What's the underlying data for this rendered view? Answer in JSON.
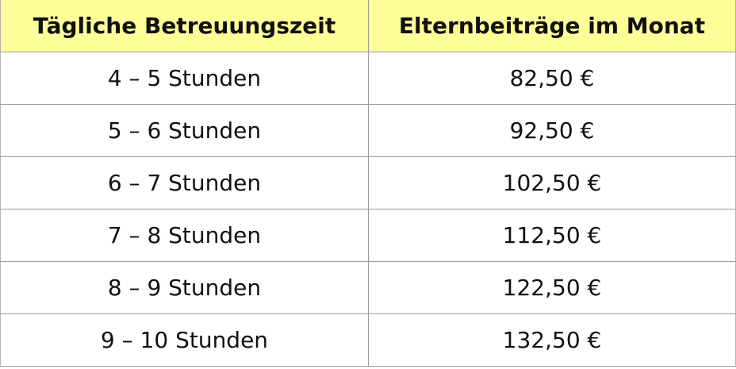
{
  "table": {
    "headers": {
      "time": "Tägliche Betreuungszeit",
      "fee": "Elternbeiträge im Monat"
    },
    "rows": [
      {
        "time": "4 – 5 Stunden",
        "fee": "82,50 €"
      },
      {
        "time": "5 – 6 Stunden",
        "fee": "92,50 €"
      },
      {
        "time": "6 – 7 Stunden",
        "fee": "102,50 €"
      },
      {
        "time": "7 – 8 Stunden",
        "fee": "112,50 €"
      },
      {
        "time": "8 – 9 Stunden",
        "fee": "122,50 €"
      },
      {
        "time": "9 – 10 Stunden",
        "fee": "132,50 €"
      }
    ]
  },
  "colors": {
    "header_background": "#ffff99",
    "grid": "#9a9a9a",
    "text": "#111111"
  }
}
